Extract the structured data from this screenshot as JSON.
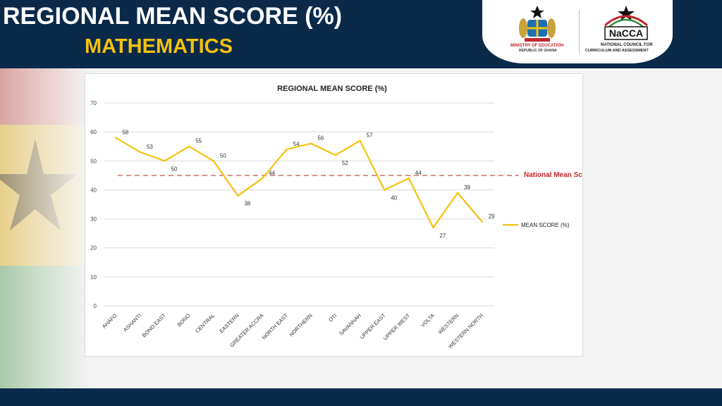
{
  "header": {
    "title": "REGIONAL MEAN SCORE (%)",
    "subtitle": "MATHEMATICS"
  },
  "logos": {
    "moe_line1": "MINISTRY OF EDUCATION",
    "moe_line2": "REPUBLIC OF GHANA",
    "nacca_name": "NaCCA",
    "nacca_line1": "NATIONAL COUNCIL FOR",
    "nacca_line2": "CURRICULUM AND ASSESSMENT"
  },
  "colors": {
    "header_bg": "#0b2a4a",
    "subtitle": "#f4c20d",
    "series_line": "#f4c20d",
    "national_line": "#c0504d"
  },
  "chart_data": {
    "type": "line",
    "title": "REGIONAL MEAN SCORE    (%)",
    "categories": [
      "AHAFO",
      "ASHANTI",
      "BONO EAST",
      "BONO",
      "CENTRAL",
      "EASTERN",
      "GREATER ACCRA",
      "NORTH EAST",
      "NORTHERN",
      "OTI",
      "SAVANNAH",
      "UPPER EAST",
      "UPPER WEST",
      "VOLTA",
      "WESTERN",
      "WESTERN NORTH"
    ],
    "series": [
      {
        "name": "MEAN SCORE    (%)",
        "values": [
          58,
          53,
          50,
          55,
          50,
          38,
          44,
          54,
          56,
          52,
          57,
          40,
          44,
          27,
          39,
          29
        ]
      }
    ],
    "reference_line": {
      "label": "National Mean Score",
      "value": 45
    },
    "ylim": [
      0,
      70
    ],
    "yticks": [
      0,
      10,
      20,
      30,
      40,
      50,
      60,
      70
    ],
    "grid": true,
    "legend": "right"
  }
}
